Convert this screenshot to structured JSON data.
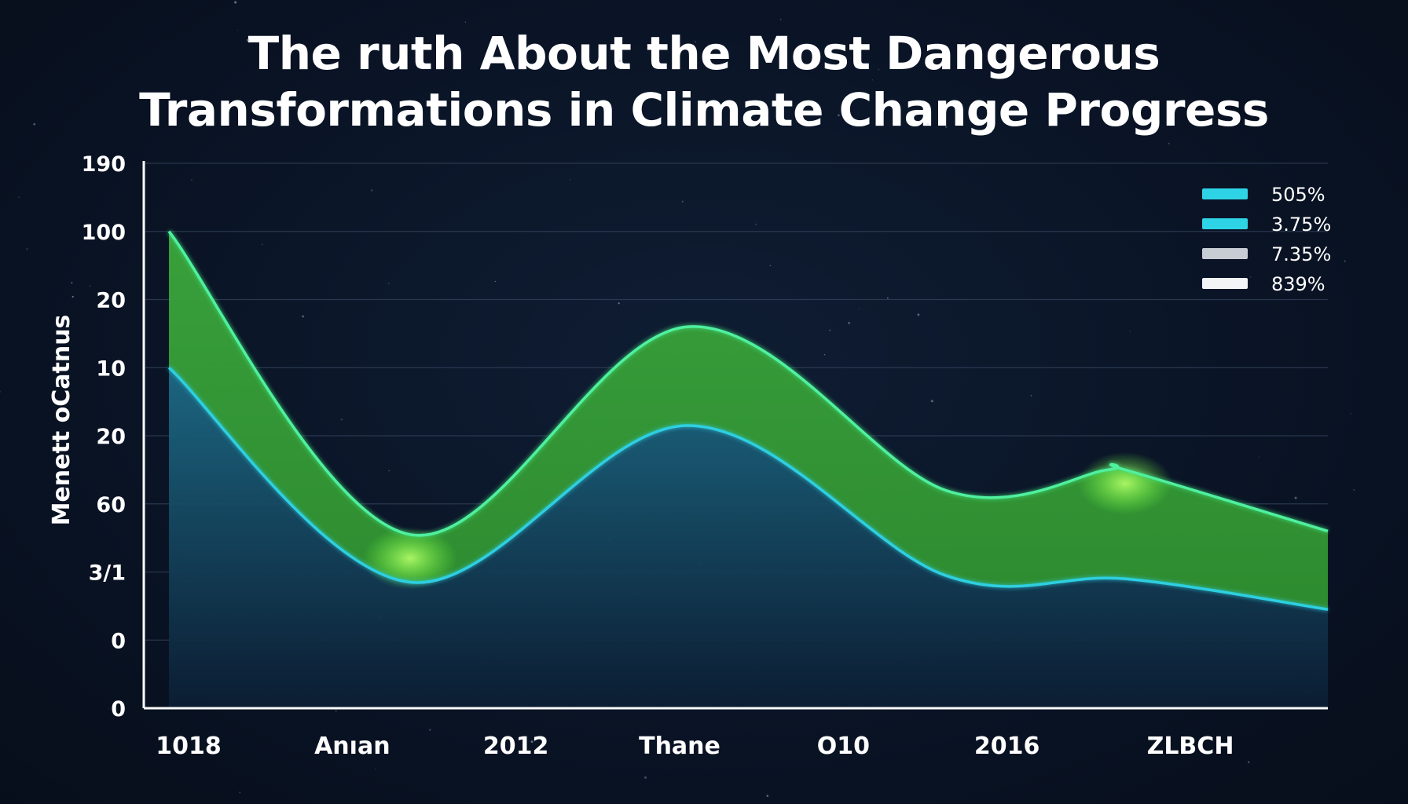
{
  "chart_data": {
    "type": "area",
    "title_lines": [
      "The ruth About the Most Dangerous",
      "Transformations in Climate Change Progress"
    ],
    "ylabel": "Menett oCatnus",
    "y_ticks": [
      "190",
      "100",
      "20",
      "10",
      "20",
      "60",
      "3/1",
      "0",
      "0"
    ],
    "x_ticks": [
      "1018",
      "Anıan",
      "2012",
      "Thane",
      "O10",
      "2016",
      "ZLBCH"
    ],
    "ylim": [
      0,
      8
    ],
    "grid": true,
    "legend_position": "top-right",
    "legend": [
      {
        "label": "505%",
        "color": "#2ed3e6"
      },
      {
        "label": "3.75%",
        "color": "#2ed3e6"
      },
      {
        "label": "7.35%",
        "color": "#c8cdd4"
      },
      {
        "label": "839%",
        "color": "#f2f4f6"
      }
    ],
    "x": [
      0,
      2.08,
      4.47,
      8.25,
      10.0
    ],
    "series": [
      {
        "color": "#2ecfe0",
        "values": [
          5.0,
          1.85,
          4.15,
          1.9,
          1.45
        ]
      },
      {
        "color": "#3fe07a",
        "values": [
          7.0,
          2.55,
          5.6,
          3.5,
          2.6
        ]
      }
    ],
    "upper_extra": [
      {
        "x": 6.7,
        "y": 3.2
      },
      {
        "x": 8.1,
        "y": 3.5
      }
    ],
    "lower_extra": [
      {
        "x": 6.7,
        "y": 1.95
      }
    ]
  }
}
